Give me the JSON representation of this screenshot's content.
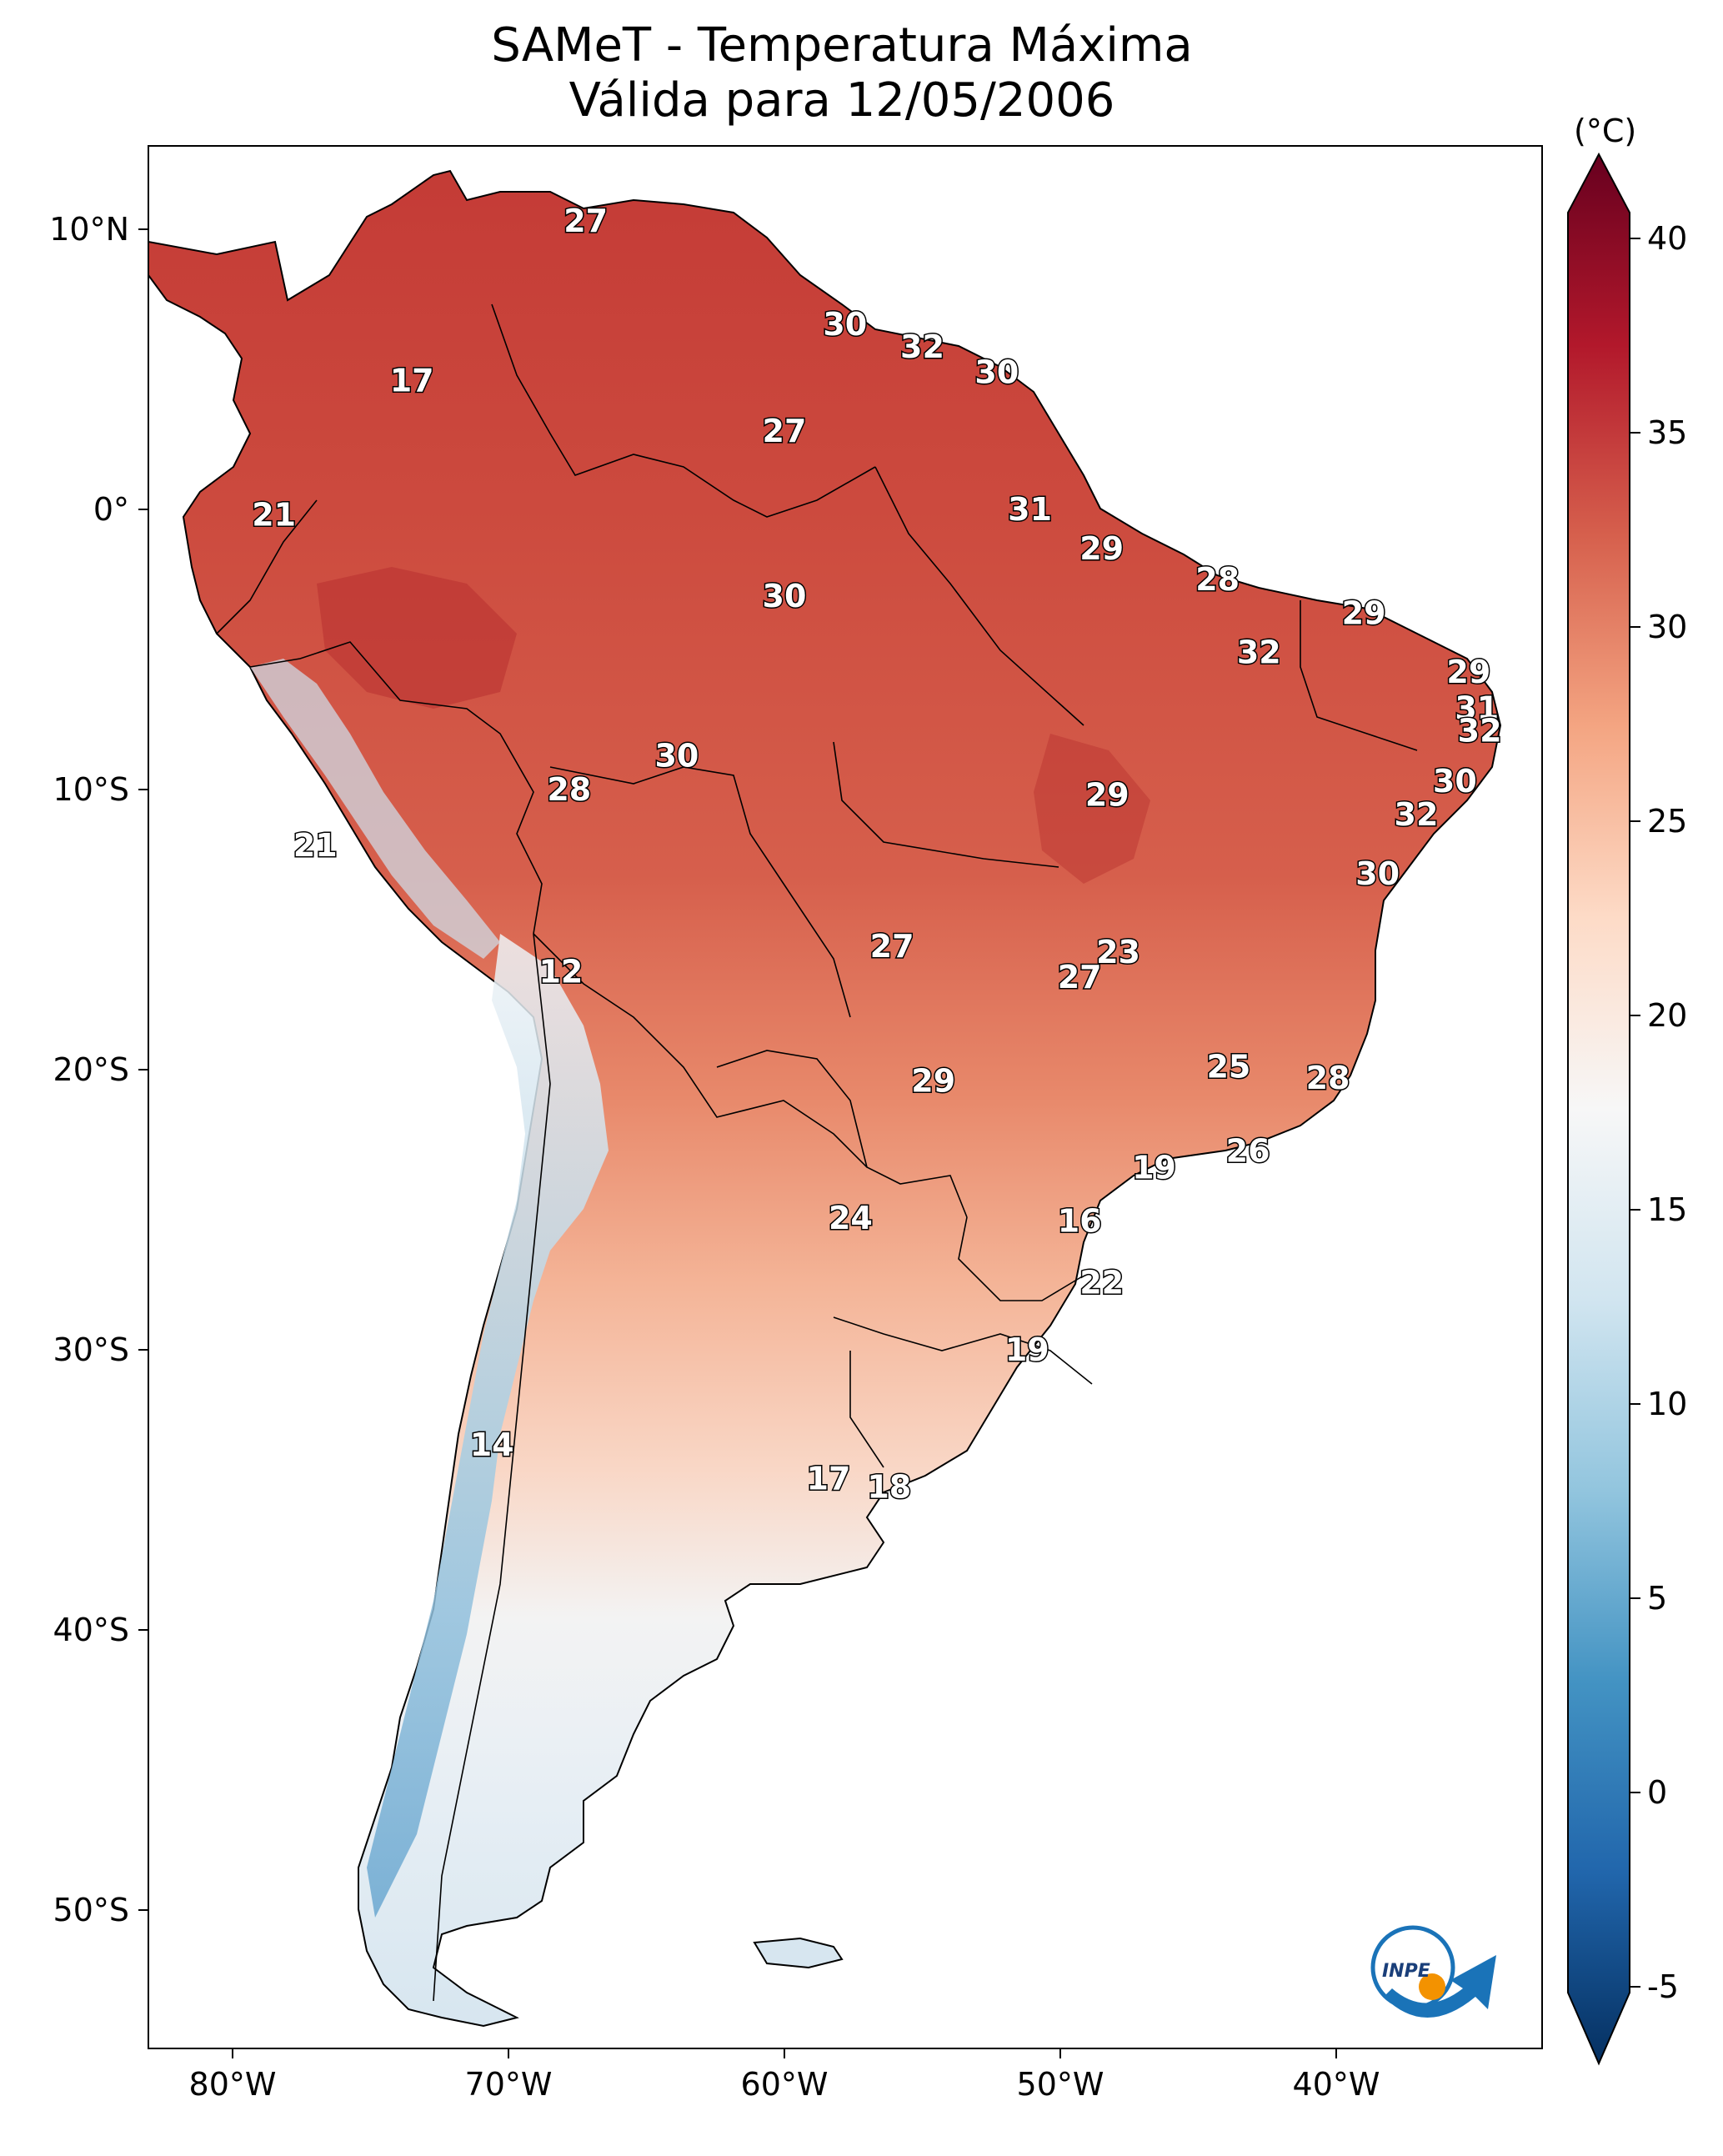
{
  "title": {
    "line1": "SAMeT - Temperatura Máxima",
    "line2": "Válida para 12/05/2006"
  },
  "axes": {
    "lon_ticks": [
      "80°W",
      "70°W",
      "60°W",
      "50°W",
      "40°W"
    ],
    "lat_ticks": [
      "10°N",
      "0°",
      "10°S",
      "20°S",
      "30°S",
      "40°S",
      "50°S"
    ]
  },
  "colorbar": {
    "unit": "(°C)",
    "ticks": [
      "40",
      "35",
      "30",
      "25",
      "20",
      "15",
      "10",
      "5",
      "0",
      "-5"
    ],
    "colors": {
      "dark_red": "#67001f",
      "red": "#b2182b",
      "light_red": "#d6604d",
      "salmon": "#f4a582",
      "peach": "#fddbc7",
      "white": "#f7f7f7",
      "light_blue": "#d1e5f0",
      "sky": "#92c5de",
      "blue": "#4393c3",
      "mid_blue": "#2166ac",
      "dark_blue": "#053061"
    }
  },
  "station_values": [
    {
      "label": "27",
      "lon": -67.2,
      "lat": 10.3
    },
    {
      "label": "30",
      "lon": -57.8,
      "lat": 6.6
    },
    {
      "label": "32",
      "lon": -55.0,
      "lat": 5.8
    },
    {
      "label": "30",
      "lon": -52.3,
      "lat": 4.9
    },
    {
      "label": "17",
      "lon": -73.5,
      "lat": 4.6
    },
    {
      "label": "27",
      "lon": -60.0,
      "lat": 2.8
    },
    {
      "label": "31",
      "lon": -51.1,
      "lat": 0.0
    },
    {
      "label": "21",
      "lon": -78.5,
      "lat": -0.2
    },
    {
      "label": "29",
      "lon": -48.5,
      "lat": -1.4
    },
    {
      "label": "28",
      "lon": -44.3,
      "lat": -2.5
    },
    {
      "label": "30",
      "lon": -60.0,
      "lat": -3.1
    },
    {
      "label": "29",
      "lon": -39.0,
      "lat": -3.7
    },
    {
      "label": "32",
      "lon": -42.8,
      "lat": -5.1
    },
    {
      "label": "29",
      "lon": -35.2,
      "lat": -5.8
    },
    {
      "label": "31",
      "lon": -34.9,
      "lat": -7.1
    },
    {
      "label": "32",
      "lon": -34.8,
      "lat": -7.9
    },
    {
      "label": "30",
      "lon": -63.9,
      "lat": -8.8
    },
    {
      "label": "30",
      "lon": -35.7,
      "lat": -9.7
    },
    {
      "label": "28",
      "lon": -67.8,
      "lat": -10.0
    },
    {
      "label": "29",
      "lon": -48.3,
      "lat": -10.2
    },
    {
      "label": "32",
      "lon": -37.1,
      "lat": -10.9
    },
    {
      "label": "21",
      "lon": -77.0,
      "lat": -12.0
    },
    {
      "label": "30",
      "lon": -38.5,
      "lat": -13.0
    },
    {
      "label": "27",
      "lon": -56.1,
      "lat": -15.6
    },
    {
      "label": "23",
      "lon": -47.9,
      "lat": -15.8
    },
    {
      "label": "27",
      "lon": -49.3,
      "lat": -16.7
    },
    {
      "label": "12",
      "lon": -68.1,
      "lat": -16.5
    },
    {
      "label": "25",
      "lon": -43.9,
      "lat": -19.9
    },
    {
      "label": "29",
      "lon": -54.6,
      "lat": -20.4
    },
    {
      "label": "28",
      "lon": -40.3,
      "lat": -20.3
    },
    {
      "label": "26",
      "lon": -43.2,
      "lat": -22.9
    },
    {
      "label": "19",
      "lon": -46.6,
      "lat": -23.5
    },
    {
      "label": "24",
      "lon": -57.6,
      "lat": -25.3
    },
    {
      "label": "16",
      "lon": -49.3,
      "lat": -25.4
    },
    {
      "label": "22",
      "lon": -48.5,
      "lat": -27.6
    },
    {
      "label": "19",
      "lon": -51.2,
      "lat": -30.0
    },
    {
      "label": "14",
      "lon": -70.6,
      "lat": -33.4
    },
    {
      "label": "17",
      "lon": -58.4,
      "lat": -34.6
    },
    {
      "label": "18",
      "lon": -56.2,
      "lat": -34.9
    }
  ],
  "logo": {
    "text": "INPE"
  }
}
